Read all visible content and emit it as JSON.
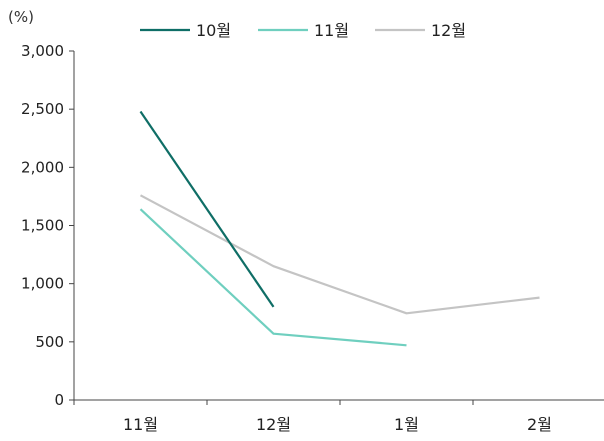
{
  "chart_data": {
    "type": "line",
    "categories": [
      "11월",
      "12월",
      "1월",
      "2월"
    ],
    "series": [
      {
        "name": "10월",
        "color": "#0f6e66",
        "values": [
          2480,
          800,
          null,
          null
        ]
      },
      {
        "name": "11월",
        "color": "#6fcfbf",
        "values": [
          1640,
          570,
          470,
          null
        ]
      },
      {
        "name": "12월",
        "color": "#c4c4c4",
        "values": [
          1760,
          1150,
          745,
          880
        ]
      }
    ],
    "ylabel": "(%)",
    "ylim": [
      0,
      3000
    ],
    "yticks": [
      0,
      500,
      1000,
      1500,
      2000,
      2500,
      3000
    ],
    "ytick_labels": [
      "0",
      "500",
      "1,000",
      "1,500",
      "2,000",
      "2,500",
      "3,000"
    ],
    "grid": false,
    "legend_position": "top"
  }
}
